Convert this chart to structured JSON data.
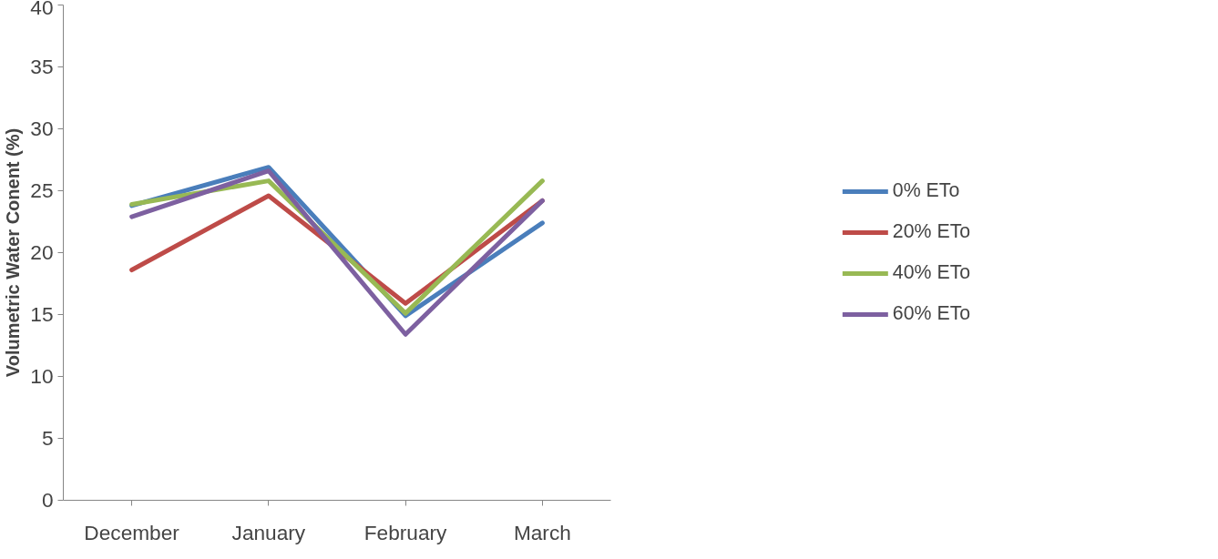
{
  "chart_data": {
    "type": "line",
    "ylabel": "Volumetric Water Conent (%)",
    "categories": [
      "December",
      "January",
      "February",
      "March"
    ],
    "series": [
      {
        "name": "0% ETo",
        "color": "#4a7ebb",
        "values": [
          23.8,
          26.9,
          14.9,
          22.4
        ]
      },
      {
        "name": "20% ETo",
        "color": "#be4b48",
        "values": [
          18.6,
          24.6,
          15.9,
          24.2
        ]
      },
      {
        "name": "40% ETo",
        "color": "#98b954",
        "values": [
          23.9,
          25.8,
          15.1,
          25.8
        ]
      },
      {
        "name": "60% ETo",
        "color": "#7d60a0",
        "values": [
          22.9,
          26.6,
          13.4,
          24.2
        ]
      }
    ],
    "ylim": [
      0,
      40
    ],
    "yticks": [
      0,
      5,
      10,
      15,
      20,
      25,
      30,
      35,
      40
    ],
    "grid": false,
    "legend": "right",
    "marker": "none",
    "line_style": "solid"
  }
}
